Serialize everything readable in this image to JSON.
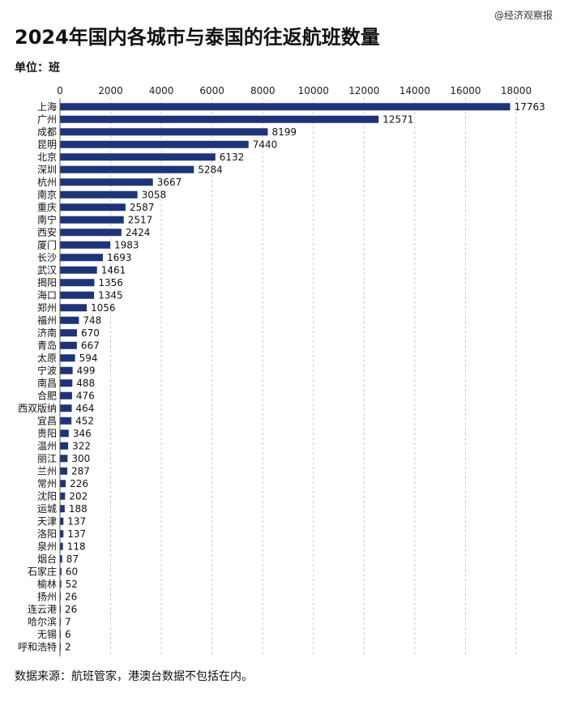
{
  "watermark": "@经济观察报",
  "title": "2024年国内各城市与泰国的往返航班数量",
  "unit_label": "单位：班",
  "source": "数据来源：航班管家，港澳台数据不包括在内。",
  "chart_data": {
    "type": "bar",
    "orientation": "horizontal",
    "title": "2024年国内各城市与泰国的往返航班数量",
    "xlim": [
      0,
      18000
    ],
    "x_ticks": [
      0,
      2000,
      4000,
      6000,
      8000,
      10000,
      12000,
      14000,
      16000,
      18000
    ],
    "x_axis_position": "top",
    "grid": true,
    "bar_color": "#1f3478",
    "categories": [
      "上海",
      "广州",
      "成都",
      "昆明",
      "北京",
      "深圳",
      "杭州",
      "南京",
      "重庆",
      "南宁",
      "西安",
      "厦门",
      "长沙",
      "武汉",
      "揭阳",
      "海口",
      "郑州",
      "福州",
      "济南",
      "青岛",
      "太原",
      "宁波",
      "南昌",
      "合肥",
      "西双版纳",
      "宜昌",
      "贵阳",
      "温州",
      "丽江",
      "兰州",
      "常州",
      "沈阳",
      "运城",
      "天津",
      "洛阳",
      "泉州",
      "烟台",
      "石家庄",
      "榆林",
      "扬州",
      "连云港",
      "哈尔滨",
      "无锡",
      "呼和浩特"
    ],
    "values": [
      17763,
      12571,
      8199,
      7440,
      6132,
      5284,
      3667,
      3058,
      2587,
      2517,
      2424,
      1983,
      1693,
      1461,
      1356,
      1345,
      1056,
      748,
      670,
      667,
      594,
      499,
      488,
      476,
      464,
      452,
      346,
      322,
      300,
      287,
      226,
      202,
      188,
      137,
      137,
      118,
      87,
      60,
      52,
      26,
      26,
      7,
      6,
      2
    ]
  }
}
